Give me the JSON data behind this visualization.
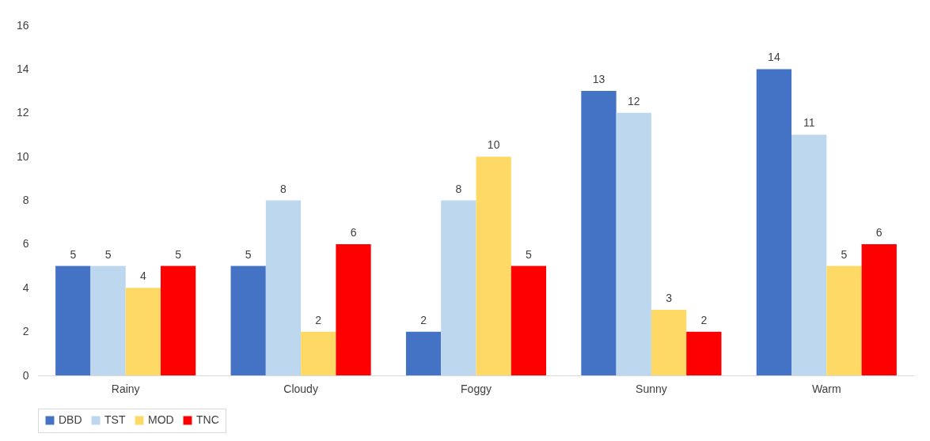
{
  "chart_data": {
    "type": "bar",
    "categories": [
      "Rainy",
      "Cloudy",
      "Foggy",
      "Sunny",
      "Warm"
    ],
    "series": [
      {
        "name": "DBD",
        "color": "#4472c4",
        "values": [
          5,
          5,
          2,
          13,
          14
        ]
      },
      {
        "name": "TST",
        "color": "#bdd7ee",
        "values": [
          5,
          8,
          8,
          12,
          11
        ]
      },
      {
        "name": "MOD",
        "color": "#ffd966",
        "values": [
          4,
          2,
          10,
          3,
          5
        ]
      },
      {
        "name": "TNC",
        "color": "#ff0000",
        "values": [
          5,
          6,
          5,
          2,
          6
        ]
      }
    ],
    "ylim": [
      0,
      16
    ],
    "yticks": [
      0,
      2,
      4,
      6,
      8,
      10,
      12,
      14,
      16
    ],
    "data_labels": true,
    "legend": "bottom",
    "grid": false
  }
}
